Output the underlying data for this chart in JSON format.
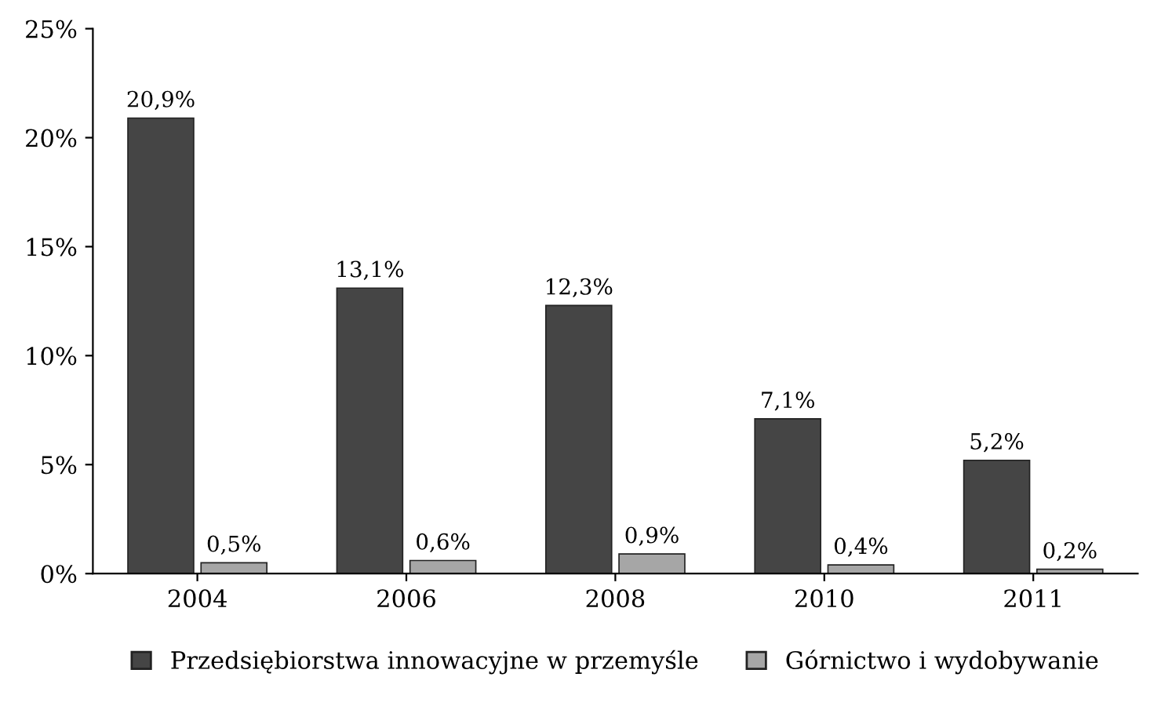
{
  "chart_data": {
    "type": "bar",
    "categories": [
      "2004",
      "2006",
      "2008",
      "2010",
      "2011"
    ],
    "series": [
      {
        "name": "Przedsiębiorstwa innowacyjne w przemyśle",
        "color": "#454545",
        "values": [
          20.9,
          13.1,
          12.3,
          7.1,
          5.2
        ],
        "value_labels": [
          "20,9%",
          "13,1%",
          "12,3%",
          "7,1%",
          "5,2%"
        ]
      },
      {
        "name": "Górnictwo i wydobywanie",
        "color": "#a6a6a6",
        "values": [
          0.5,
          0.6,
          0.9,
          0.4,
          0.2
        ],
        "value_labels": [
          "0,5%",
          "0,6%",
          "0,9%",
          "0,4%",
          "0,2%"
        ]
      }
    ],
    "ylim": [
      0,
      25
    ],
    "yticks": [
      {
        "value": 0,
        "label": "0%"
      },
      {
        "value": 5,
        "label": "5%"
      },
      {
        "value": 10,
        "label": "10%"
      },
      {
        "value": 15,
        "label": "15%"
      },
      {
        "value": 20,
        "label": "20%"
      },
      {
        "value": 25,
        "label": "25%"
      }
    ],
    "grid": false,
    "legend": "bottom"
  }
}
